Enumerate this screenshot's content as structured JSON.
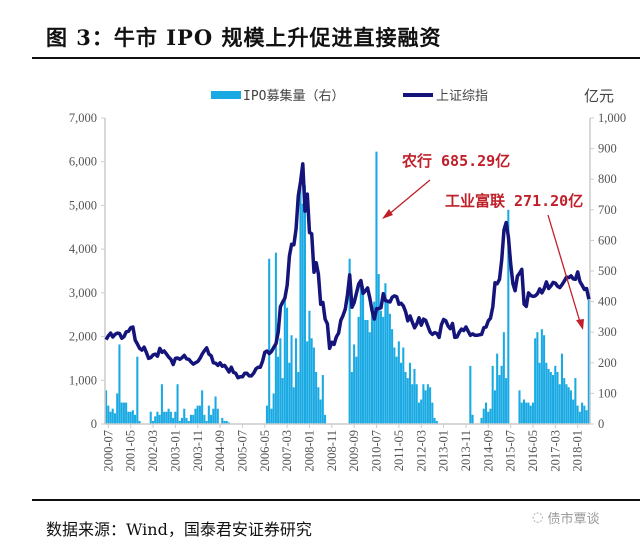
{
  "title": "图 3：牛市 IPO 规模上升促进直接融资",
  "source": "数据来源：Wind，国泰君安证券研究",
  "watermark": "债市覃谈",
  "chart_data": {
    "type": "bar+line",
    "frequency": "monthly",
    "start_month": "2000-06",
    "unit_label_right": "亿元",
    "legend": {
      "position": "top",
      "items": [
        "IPO募集量（右）",
        "上证综指"
      ]
    },
    "left_axis": {
      "range": [
        0,
        7000
      ],
      "ticks": [
        "0",
        "1,000",
        "2,000",
        "3,000",
        "4,000",
        "5,000",
        "6,000",
        "7,000"
      ]
    },
    "right_axis": {
      "range": [
        0,
        1000
      ],
      "ticks": [
        "0",
        "100",
        "200",
        "300",
        "400",
        "500",
        "600",
        "700",
        "800",
        "900",
        "1,000"
      ]
    },
    "x_ticks": [
      "2000-07",
      "2001-05",
      "2002-03",
      "2003-01",
      "2003-11",
      "2004-09",
      "2005-07",
      "2006-05",
      "2007-03",
      "2008-01",
      "2008-11",
      "2009-09",
      "2010-07",
      "2011-05",
      "2012-03",
      "2013-01",
      "2013-11",
      "2014-09",
      "2015-07",
      "2016-05",
      "2017-03",
      "2018-01"
    ],
    "grid": false,
    "colors": {
      "ipo": "#19a9e3",
      "index": "#14147a",
      "annotation": "#c0202a"
    },
    "series": [
      {
        "name": "上证综指",
        "axis": "left",
        "type": "line",
        "values": [
          1930,
          2020,
          2080,
          1990,
          2050,
          2080,
          2070,
          1960,
          2000,
          2110,
          2120,
          2200,
          2220,
          1920,
          1830,
          1730,
          1690,
          1760,
          1640,
          1500,
          1520,
          1580,
          1600,
          1550,
          1730,
          1640,
          1670,
          1600,
          1530,
          1480,
          1360,
          1500,
          1510,
          1480,
          1520,
          1570,
          1490,
          1480,
          1420,
          1370,
          1400,
          1430,
          1500,
          1600,
          1680,
          1740,
          1600,
          1560,
          1400,
          1390,
          1340,
          1400,
          1320,
          1340,
          1270,
          1190,
          1300,
          1180,
          1160,
          1060,
          1080,
          1080,
          1160,
          1160,
          1100,
          1100,
          1160,
          1260,
          1300,
          1300,
          1440,
          1640,
          1670,
          1610,
          1660,
          1750,
          1840,
          2100,
          2680,
          2790,
          2880,
          3180,
          3840,
          4110,
          4100,
          4470,
          5220,
          5550,
          5950,
          4870,
          5260,
          4380,
          4350,
          3470,
          3690,
          3430,
          2740,
          2780,
          2400,
          2290,
          1730,
          1870,
          1820,
          1990,
          2080,
          2370,
          2480,
          2630,
          2960,
          3410,
          2670,
          2780,
          2990,
          3200,
          3280,
          2990,
          3050,
          3110,
          2870,
          2590,
          2400,
          2640,
          2640,
          2660,
          2980,
          2820,
          2810,
          2790,
          2900,
          2930,
          2910,
          2740,
          2760,
          2700,
          2570,
          2360,
          2470,
          2330,
          2200,
          2290,
          2430,
          2260,
          2400,
          2370,
          2230,
          2100,
          2050,
          2090,
          2070,
          1980,
          2270,
          2390,
          2360,
          2240,
          2180,
          2300,
          1980,
          1990,
          2100,
          2170,
          2140,
          2220,
          2120,
          2030,
          2060,
          2030,
          2030,
          2040,
          2050,
          2200,
          2220,
          2360,
          2420,
          2680,
          3230,
          3210,
          3310,
          3750,
          4440,
          4610,
          4280,
          3660,
          3210,
          3050,
          3380,
          3450,
          3540,
          2740,
          2690,
          3000,
          2940,
          2920,
          2930,
          2980,
          3090,
          3000,
          3100,
          3250,
          3100,
          3160,
          3240,
          3220,
          3150,
          3120,
          3190,
          3270,
          3360,
          3350,
          3390,
          3320,
          3310,
          3480,
          3260,
          3170,
          3080,
          3100,
          2850
        ]
      },
      {
        "name": "IPO募集量（右）",
        "axis": "right",
        "type": "bar",
        "values": [
          110,
          60,
          40,
          50,
          35,
          100,
          260,
          70,
          70,
          70,
          40,
          40,
          45,
          30,
          220,
          10,
          0,
          0,
          0,
          0,
          40,
          10,
          25,
          40,
          30,
          130,
          40,
          40,
          50,
          40,
          20,
          40,
          130,
          10,
          20,
          50,
          20,
          10,
          30,
          30,
          50,
          60,
          60,
          110,
          30,
          10,
          60,
          30,
          50,
          90,
          50,
          0,
          20,
          10,
          10,
          5,
          0,
          0,
          0,
          0,
          0,
          0,
          0,
          0,
          0,
          0,
          0,
          0,
          0,
          0,
          0,
          0,
          60,
          540,
          50,
          100,
          560,
          220,
          280,
          150,
          420,
          380,
          200,
          290,
          120,
          280,
          170,
          780,
          720,
          780,
          270,
          370,
          280,
          250,
          170,
          120,
          80,
          160,
          30,
          0,
          0,
          0,
          0,
          0,
          0,
          0,
          0,
          0,
          0,
          540,
          170,
          260,
          220,
          350,
          470,
          450,
          340,
          340,
          300,
          370,
          400,
          890,
          490,
          370,
          350,
          460,
          400,
          360,
          310,
          250,
          220,
          270,
          200,
          250,
          170,
          150,
          200,
          130,
          180,
          130,
          70,
          80,
          130,
          110,
          130,
          120,
          70,
          20,
          10,
          0,
          0,
          0,
          0,
          0,
          0,
          0,
          0,
          0,
          0,
          0,
          0,
          0,
          0,
          190,
          30,
          0,
          0,
          0,
          20,
          50,
          70,
          40,
          50,
          190,
          110,
          230,
          160,
          190,
          300,
          150,
          700,
          0,
          0,
          0,
          0,
          110,
          70,
          80,
          70,
          70,
          60,
          70,
          280,
          300,
          200,
          310,
          290,
          200,
          180,
          170,
          160,
          190,
          170,
          130,
          230,
          150,
          130,
          120,
          110,
          80,
          150,
          60,
          40,
          70,
          60,
          45,
          405
        ]
      }
    ],
    "annotations": [
      {
        "text": "农行 685.29亿",
        "month": "2010-07"
      },
      {
        "text": "工业富联 271.20亿",
        "month": "2018-06"
      }
    ]
  }
}
